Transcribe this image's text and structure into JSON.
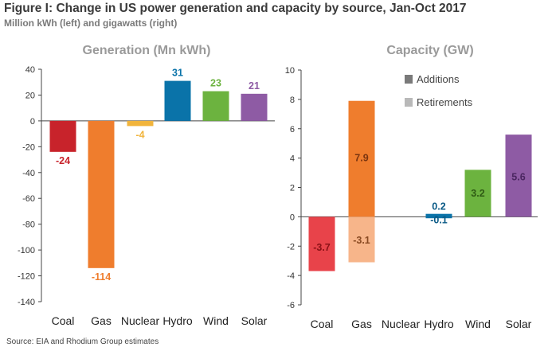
{
  "figure": {
    "title": "Figure I: Change in US power generation and capacity by source, Jan-Oct 2017",
    "subtitle": "Million kWh (left) and gigawatts (right)",
    "source": "Source: EIA and Rhodium Group estimates"
  },
  "colors": {
    "coal": "#c8232b",
    "gas": "#ef7d2d",
    "gas_retire": "#f7b58a",
    "nuclear": "#f1b43c",
    "hydro": "#0a73a9",
    "wind": "#6cb33f",
    "solar": "#8e5ba4",
    "additions": "#7a7a7a",
    "retirements": "#b9b9b9",
    "axis": "#444444"
  },
  "chart_data": [
    {
      "type": "bar",
      "title": "Generation (Mn kWh)",
      "categories": [
        "Coal",
        "Gas",
        "Nuclear",
        "Hydro",
        "Wind",
        "Solar"
      ],
      "values": [
        -24,
        -114,
        -4,
        31,
        23,
        21
      ],
      "data_labels": [
        "-24",
        "-114",
        "-4",
        "31",
        "23",
        "21"
      ],
      "ylim": [
        -140,
        40
      ],
      "yticks": [
        -140,
        -120,
        -100,
        -80,
        -60,
        -40,
        -20,
        0,
        20,
        40
      ],
      "xlabel": "",
      "ylabel": "",
      "grid": false
    },
    {
      "type": "bar",
      "title": "Capacity (GW)",
      "categories": [
        "Coal",
        "Gas",
        "Nuclear",
        "Hydro",
        "Wind",
        "Solar"
      ],
      "series": [
        {
          "name": "Additions",
          "values": [
            0,
            7.9,
            0,
            0.2,
            3.2,
            5.6
          ],
          "data_labels": [
            "",
            "7.9",
            "",
            "0.2",
            "3.2",
            "5.6"
          ]
        },
        {
          "name": "Retirements",
          "values": [
            -3.7,
            -3.1,
            0,
            -0.1,
            0,
            0
          ],
          "data_labels": [
            "-3.7",
            "-3.1",
            "",
            "-0.1",
            "",
            ""
          ]
        }
      ],
      "ylim": [
        -6,
        10
      ],
      "yticks": [
        -6,
        -4,
        -2,
        0,
        2,
        4,
        6,
        8,
        10
      ],
      "legend_position": "top-right",
      "xlabel": "",
      "ylabel": "",
      "grid": false
    }
  ]
}
